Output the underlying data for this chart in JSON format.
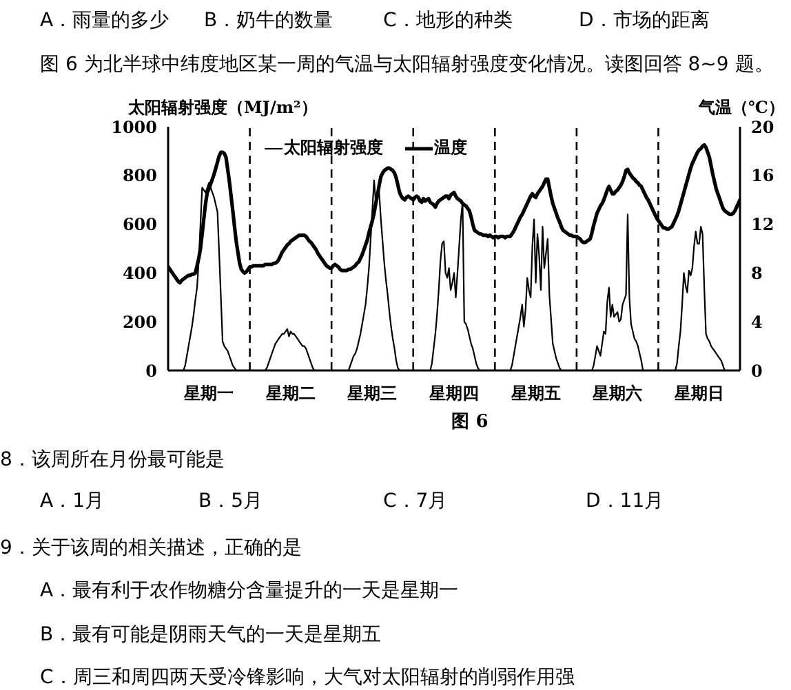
{
  "chart_data": {
    "type": "line",
    "title": "图 6 为北半球中纬度地区某一周的气温与太阳辐射强度变化情况。读图回答 8~9 题。",
    "ylabel": "太阳辐射强度（MJ/m²）",
    "y2label": "气温（℃）",
    "annotations": [
      "A．雨量的多少",
      "B．奶牛的数量",
      "C．地形的种类",
      "D．市场的距离",
      "图 6",
      "8．该周所在月份最可能是",
      "A．1月",
      "B．5月",
      "C．7月",
      "D．11月",
      "9．关于该周的相关描述，正确的是",
      "A．最有利于农作物糖分含量提升的一天是星期一",
      "B．最有可能是阴雨天气的一天是星期五",
      "C．周三和周四两天受冷锋影响，大气对太阳辐射的削弱作用强"
    ],
    "categories": [
      null,
      null,
      null,
      null,
      null,
      null,
      null,
      null,
      null,
      null,
      null,
      null,
      null,
      null,
      null,
      null,
      null,
      null,
      null,
      null,
      null,
      null,
      null,
      null,
      "星期一",
      null,
      null,
      null,
      null,
      null,
      null,
      null,
      null,
      null,
      null,
      null,
      null,
      null,
      null,
      null,
      null,
      null,
      null,
      null,
      null,
      null,
      null,
      null,
      null,
      null,
      null,
      null,
      null,
      null,
      null,
      null,
      null,
      null,
      null,
      null,
      null,
      null,
      null,
      null,
      null,
      null,
      null,
      null,
      null,
      null,
      null,
      null,
      "星期二",
      null,
      null,
      null,
      null,
      null,
      null,
      null,
      null,
      null,
      null,
      null,
      null,
      null,
      null,
      null,
      null,
      null,
      null,
      null,
      null,
      null,
      null,
      null,
      null,
      null,
      null,
      null,
      null,
      null,
      null,
      null,
      null,
      null,
      null,
      null,
      null,
      null,
      null,
      null,
      null,
      null,
      null,
      null,
      null,
      null,
      null,
      null,
      "星期三",
      null,
      null,
      null,
      null,
      null,
      null,
      null,
      null,
      null,
      null,
      null,
      null,
      null,
      null,
      null,
      null,
      null,
      null,
      null,
      null,
      null,
      null,
      null,
      null,
      null,
      null,
      null,
      null,
      null,
      null,
      null,
      null,
      null,
      null,
      null,
      null,
      null,
      null,
      null,
      null,
      null,
      null,
      null,
      null,
      null,
      null,
      null,
      "星期四",
      null,
      null,
      null,
      null,
      null,
      null,
      null,
      null,
      null,
      null,
      null,
      null,
      null,
      null,
      null,
      null,
      null,
      null,
      null,
      null,
      null,
      null,
      null,
      null,
      null,
      null,
      null,
      null,
      null,
      null,
      null,
      null,
      null,
      null,
      null,
      null,
      null,
      null,
      null,
      null,
      null,
      null,
      null,
      null,
      null,
      null,
      null,
      "星期五",
      null,
      null,
      null,
      null,
      null,
      null,
      null,
      null,
      null,
      null,
      null,
      null,
      null,
      null,
      null,
      null,
      null,
      null,
      null,
      null,
      null,
      null,
      null,
      null,
      null,
      null,
      null,
      null,
      null,
      null,
      null,
      null,
      null,
      null,
      null,
      null,
      null,
      null,
      null,
      null,
      null,
      null,
      null,
      null,
      null,
      null,
      null,
      "星期六",
      null,
      null,
      null,
      null,
      null,
      null,
      null,
      null,
      null,
      null,
      null,
      null,
      null,
      null,
      null,
      null,
      null,
      null,
      null,
      null,
      null,
      null,
      null,
      null,
      null,
      null,
      null,
      null,
      null,
      null,
      null,
      null,
      null,
      null,
      null,
      null,
      null,
      null,
      null,
      null,
      null,
      null,
      null,
      null,
      null,
      null,
      null,
      "星期日",
      null,
      null,
      null,
      null,
      null,
      null,
      null,
      null,
      null,
      null,
      null,
      null,
      null,
      null,
      null,
      null,
      null,
      null,
      null,
      null,
      null,
      null,
      null,
      null
    ],
    "ylim": [
      0,
      1000
    ],
    "yticks": [
      0,
      200,
      400,
      600,
      800,
      1000
    ],
    "y2lim": [
      0,
      20
    ],
    "y2ticks": [
      0,
      4,
      8,
      12,
      16,
      20
    ],
    "legend": "top",
    "marker": "none",
    "series": [
      {
        "name": "太阳辐射强度",
        "color": "#000000",
        "values": [
          0,
          0,
          0,
          0,
          0,
          0,
          0,
          0,
          0,
          0,
          20,
          60,
          100,
          140,
          180,
          230,
          290,
          340,
          450,
          600,
          750,
          740,
          730,
          750,
          770,
          750,
          730,
          710,
          680,
          650,
          480,
          300,
          120,
          100,
          90,
          80,
          60,
          40,
          20,
          10,
          0,
          0,
          0,
          0,
          0,
          0,
          0,
          0,
          0,
          0,
          0,
          0,
          0,
          0,
          0,
          0,
          0,
          0,
          10,
          30,
          50,
          70,
          90,
          110,
          120,
          130,
          140,
          150,
          150,
          160,
          170,
          140,
          160,
          150,
          150,
          140,
          130,
          120,
          110,
          100,
          100,
          90,
          70,
          50,
          30,
          10,
          0,
          0,
          0,
          0,
          0,
          0,
          0,
          0,
          0,
          0,
          0,
          0,
          0,
          0,
          0,
          0,
          0,
          0,
          0,
          0,
          0,
          20,
          40,
          60,
          70,
          90,
          120,
          150,
          190,
          230,
          270,
          340,
          420,
          540,
          660,
          780,
          690,
          710,
          730,
          620,
          530,
          440,
          370,
          310,
          240,
          180,
          130,
          90,
          40,
          10,
          0,
          0,
          0,
          0,
          0,
          0,
          0,
          0,
          0,
          0,
          0,
          0,
          0,
          0,
          0,
          0,
          0,
          0,
          0,
          30,
          90,
          150,
          230,
          330,
          450,
          520,
          530,
          400,
          380,
          420,
          330,
          360,
          400,
          300,
          400,
          510,
          620,
          690,
          200,
          190,
          170,
          140,
          110,
          90,
          60,
          30,
          10,
          0,
          0,
          0,
          0,
          0,
          0,
          0,
          0,
          0,
          0,
          0,
          0,
          0,
          0,
          0,
          0,
          0,
          0,
          0,
          20,
          60,
          100,
          140,
          180,
          220,
          270,
          180,
          250,
          380,
          330,
          300,
          510,
          620,
          360,
          560,
          470,
          330,
          590,
          420,
          480,
          540,
          310,
          210,
          110,
          80,
          50,
          30,
          10,
          0,
          0,
          0,
          0,
          0,
          0,
          0,
          0,
          0,
          0,
          0,
          0,
          0,
          0,
          0,
          0,
          0,
          0,
          0,
          20,
          60,
          100,
          80,
          60,
          110,
          160,
          150,
          280,
          340,
          220,
          270,
          220,
          230,
          240,
          200,
          210,
          270,
          290,
          310,
          640,
          300,
          190,
          160,
          130,
          120,
          100,
          70,
          40,
          0,
          0,
          0,
          0,
          0,
          0,
          0,
          0,
          0,
          0,
          0,
          0,
          0,
          0,
          0,
          0,
          0,
          0,
          0,
          0,
          30,
          100,
          160,
          270,
          400,
          350,
          320,
          410,
          390,
          420,
          510,
          570,
          520,
          520,
          590,
          560,
          340,
          150,
          130,
          120,
          100,
          90,
          80,
          70,
          60,
          50,
          40,
          20,
          0,
          0,
          0,
          0,
          0,
          0,
          0,
          0,
          0,
          0
        ]
      },
      {
        "name": "温度",
        "color": "#000000",
        "axis": "y2",
        "values": [
          8.5,
          8.3,
          8.1,
          7.9,
          7.7,
          7.5,
          7.3,
          7.2,
          7.4,
          7.5,
          7.6,
          7.7,
          7.8,
          7.8,
          7.9,
          7.9,
          8.0,
          8.6,
          9.2,
          10.0,
          11.2,
          12.5,
          13.7,
          14.6,
          14.9,
          15.3,
          15.7,
          16.1,
          16.6,
          17.1,
          17.6,
          17.9,
          17.9,
          17.8,
          17.5,
          16.5,
          15.5,
          14.3,
          13.1,
          11.8,
          10.6,
          9.7,
          8.8,
          8.3,
          8.1,
          8.0,
          8.1,
          8.3,
          8.5,
          8.5,
          8.6,
          8.6,
          8.6,
          8.6,
          8.6,
          8.6,
          8.6,
          8.7,
          8.7,
          8.7,
          8.7,
          8.7,
          8.8,
          8.8,
          8.9,
          9.1,
          9.4,
          9.7,
          9.9,
          10.1,
          10.3,
          10.4,
          10.6,
          10.7,
          10.8,
          10.9,
          11.0,
          11.1,
          11.1,
          11.1,
          11.1,
          11.0,
          10.8,
          10.6,
          10.5,
          10.3,
          10.1,
          9.9,
          9.6,
          9.4,
          9.2,
          9.0,
          8.8,
          8.6,
          8.5,
          8.4,
          8.4,
          8.6,
          8.7,
          8.6,
          8.5,
          8.3,
          8.2,
          8.2,
          8.2,
          8.2,
          8.3,
          8.3,
          8.4,
          8.5,
          8.6,
          8.8,
          8.9,
          9.2,
          9.5,
          9.9,
          10.3,
          10.7,
          11.3,
          11.8,
          12.3,
          12.9,
          13.7,
          14.4,
          15.2,
          15.9,
          16.2,
          16.4,
          16.5,
          16.6,
          16.6,
          16.5,
          16.4,
          16.2,
          15.8,
          15.2,
          14.6,
          14.3,
          14.1,
          14.0,
          14.2,
          14.3,
          14.2,
          14.1,
          14.0,
          14.2,
          14.3,
          14.2,
          13.9,
          13.8,
          14.1,
          13.9,
          14.0,
          14.1,
          13.8,
          13.7,
          13.6,
          13.4,
          13.7,
          13.9,
          14.0,
          14.1,
          14.2,
          14.3,
          14.3,
          14.1,
          14.4,
          14.5,
          14.6,
          14.3,
          14.1,
          14.0,
          13.9,
          13.7,
          13.6,
          13.5,
          13.3,
          13.1,
          12.6,
          12.0,
          11.5,
          11.4,
          11.3,
          11.2,
          11.2,
          11.1,
          11.1,
          11.1,
          11.0,
          11.1,
          11.0,
          10.9,
          11.0,
          11.0,
          10.9,
          11.0,
          11.0,
          11.0,
          10.9,
          11.0,
          11.0,
          11.0,
          11.2,
          11.4,
          11.7,
          12.0,
          12.3,
          12.6,
          12.8,
          13.1,
          13.4,
          13.7,
          14.0,
          14.3,
          14.5,
          14.3,
          14.2,
          14.5,
          14.7,
          14.9,
          15.1,
          15.4,
          15.7,
          15.7,
          15.0,
          14.3,
          13.7,
          13.3,
          12.9,
          12.5,
          12.2,
          11.8,
          11.5,
          11.4,
          11.3,
          11.2,
          11.1,
          11.1,
          11.0,
          11.0,
          11.0,
          10.9,
          10.8,
          10.6,
          10.5,
          10.5,
          10.6,
          10.7,
          10.8,
          11.3,
          11.9,
          12.4,
          12.9,
          13.2,
          13.5,
          13.7,
          14.0,
          14.4,
          14.8,
          15.1,
          14.8,
          14.5,
          14.5,
          14.7,
          14.8,
          15.0,
          15.2,
          15.5,
          15.9,
          16.4,
          16.5,
          16.2,
          16.0,
          15.8,
          15.7,
          15.5,
          15.4,
          15.2,
          15.1,
          14.8,
          14.5,
          14.2,
          14.0,
          13.7,
          13.4,
          13.1,
          12.8,
          12.5,
          12.3,
          12.1,
          11.9,
          11.7,
          11.7,
          11.6,
          11.6,
          11.7,
          11.8,
          12.1,
          12.4,
          12.7,
          13.1,
          13.6,
          14.1,
          14.6,
          15.1,
          15.6,
          16.1,
          16.6,
          17.0,
          17.3,
          17.6,
          17.9,
          18.1,
          18.2,
          18.4,
          18.5,
          18.3,
          17.9,
          17.5,
          16.8,
          16.1,
          15.5,
          14.9,
          14.5,
          14.1,
          13.7,
          13.3,
          13.1,
          13.0,
          12.9,
          12.8,
          12.8,
          12.9,
          13.1,
          13.4,
          13.7,
          14.0
        ]
      }
    ]
  }
}
